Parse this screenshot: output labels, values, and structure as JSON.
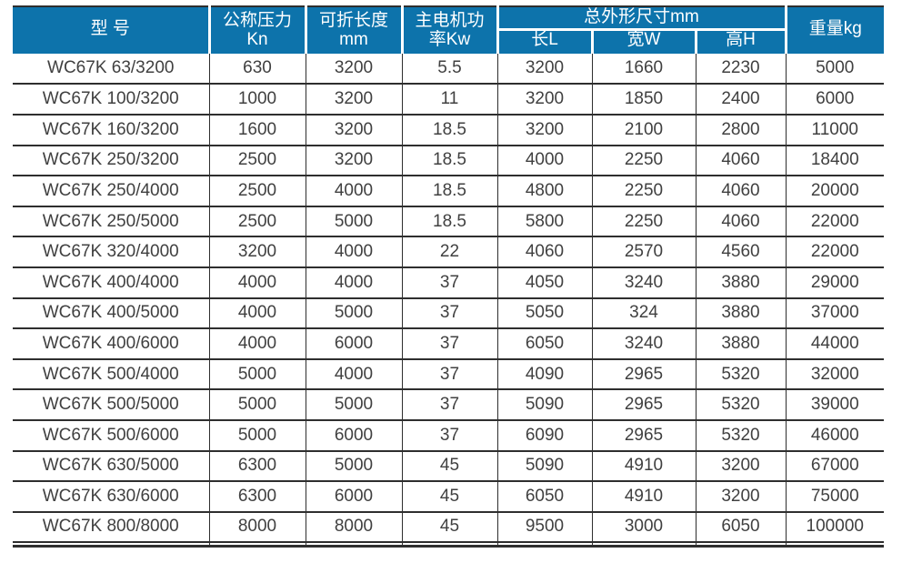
{
  "colors": {
    "header_bg": "#0d73ab",
    "header_text": "#ffffff",
    "cell_text": "#404040",
    "grid_line": "#2e2e2e"
  },
  "table": {
    "headers": {
      "model": "型 号",
      "pressure": [
        "公称压力",
        "Kn"
      ],
      "fold_length": [
        "可折长度",
        "mm"
      ],
      "motor_power": [
        "主电机功",
        "率Kw"
      ],
      "dims_group": "总外形尺寸mm",
      "dim_length": "长L",
      "dim_width": "宽W",
      "dim_height": "高H",
      "weight": "重量kg"
    },
    "column_keys": [
      "model",
      "nominal-pressure-kn",
      "fold-length-mm",
      "motor-power-kw",
      "length-l",
      "width-w",
      "height-h",
      "weight-kg"
    ],
    "rows": [
      [
        "WC67K 63/3200",
        "630",
        "3200",
        "5.5",
        "3200",
        "1660",
        "2230",
        "5000"
      ],
      [
        "WC67K 100/3200",
        "1000",
        "3200",
        "11",
        "3200",
        "1850",
        "2400",
        "6000"
      ],
      [
        "WC67K 160/3200",
        "1600",
        "3200",
        "18.5",
        "3200",
        "2100",
        "2800",
        "11000"
      ],
      [
        "WC67K 250/3200",
        "2500",
        "3200",
        "18.5",
        "4000",
        "2250",
        "4060",
        "18400"
      ],
      [
        "WC67K 250/4000",
        "2500",
        "4000",
        "18.5",
        "4800",
        "2250",
        "4060",
        "20000"
      ],
      [
        "WC67K 250/5000",
        "2500",
        "5000",
        "18.5",
        "5800",
        "2250",
        "4060",
        "22000"
      ],
      [
        "WC67K 320/4000",
        "3200",
        "4000",
        "22",
        "4060",
        "2570",
        "4560",
        "22000"
      ],
      [
        "WC67K 400/4000",
        "4000",
        "4000",
        "37",
        "4050",
        "3240",
        "3880",
        "29000"
      ],
      [
        "WC67K 400/5000",
        "4000",
        "5000",
        "37",
        "5050",
        "324",
        "3880",
        "37000"
      ],
      [
        "WC67K 400/6000",
        "4000",
        "6000",
        "37",
        "6050",
        "3240",
        "3880",
        "44000"
      ],
      [
        "WC67K 500/4000",
        "5000",
        "4000",
        "37",
        "4090",
        "2965",
        "5320",
        "32000"
      ],
      [
        "WC67K 500/5000",
        "5000",
        "5000",
        "37",
        "5090",
        "2965",
        "5320",
        "39000"
      ],
      [
        "WC67K 500/6000",
        "5000",
        "6000",
        "37",
        "6090",
        "2965",
        "5320",
        "46000"
      ],
      [
        "WC67K 630/5000",
        "6300",
        "5000",
        "45",
        "5090",
        "4910",
        "3200",
        "67000"
      ],
      [
        "WC67K 630/6000",
        "6300",
        "6000",
        "45",
        "6050",
        "4910",
        "3200",
        "75000"
      ],
      [
        "WC67K 800/8000",
        "8000",
        "8000",
        "45",
        "9500",
        "3000",
        "6050",
        "100000"
      ]
    ]
  }
}
